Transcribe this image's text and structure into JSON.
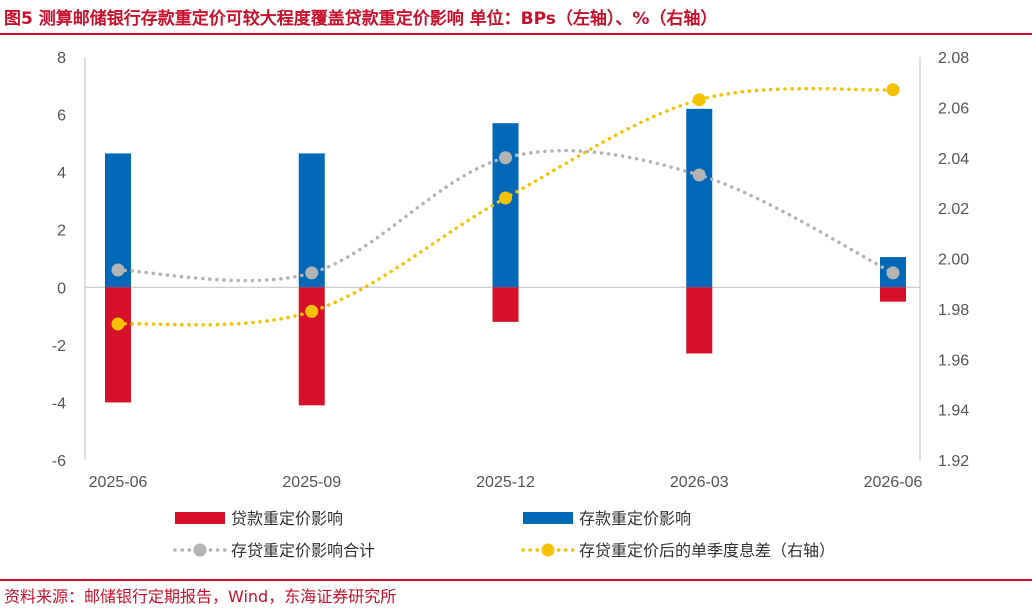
{
  "header": {
    "title": "图5 测算邮储银行存款重定价可较大程度覆盖贷款重定价影响 单位：BPs（左轴）、%（右轴）"
  },
  "footer": {
    "source": "资料来源：邮储银行定期报告，Wind，东海证券研究所"
  },
  "colors": {
    "loan": "#d7102a",
    "deposit": "#0068b7",
    "total": "#b4b4b4",
    "spread": "#f5c200",
    "accent": "#c8102e"
  },
  "chart_data": {
    "type": "bar",
    "title": "测算邮储银行存款重定价可较大程度覆盖贷款重定价影响",
    "categories": [
      "2025-06",
      "2025-09",
      "2025-12",
      "2026-03",
      "2026-06"
    ],
    "y_left": {
      "ylim": [
        -6,
        8
      ],
      "ticks": [
        "-6",
        "-4",
        "-2",
        "0",
        "2",
        "4",
        "6",
        "8"
      ]
    },
    "y_right": {
      "ylim": [
        1.92,
        2.08
      ],
      "ticks": [
        "1.92",
        "1.94",
        "1.96",
        "1.98",
        "2.00",
        "2.02",
        "2.04",
        "2.06",
        "2.08"
      ]
    },
    "grid": false,
    "legend_position": "bottom",
    "series": [
      {
        "name": "贷款重定价影响",
        "type": "bar",
        "axis": "left",
        "values": [
          -4.0,
          -4.1,
          -1.2,
          -2.3,
          -0.5
        ]
      },
      {
        "name": "存款重定价影响",
        "type": "bar",
        "axis": "left",
        "values": [
          4.65,
          4.65,
          5.7,
          6.2,
          1.05
        ]
      },
      {
        "name": "存贷重定价影响合计",
        "type": "line",
        "axis": "left",
        "values": [
          0.6,
          0.5,
          4.5,
          3.9,
          0.5
        ]
      },
      {
        "name": "存贷重定价后的单季度息差（右轴）",
        "type": "line",
        "axis": "right",
        "values": [
          1.974,
          1.979,
          2.024,
          2.063,
          2.067
        ]
      }
    ]
  }
}
